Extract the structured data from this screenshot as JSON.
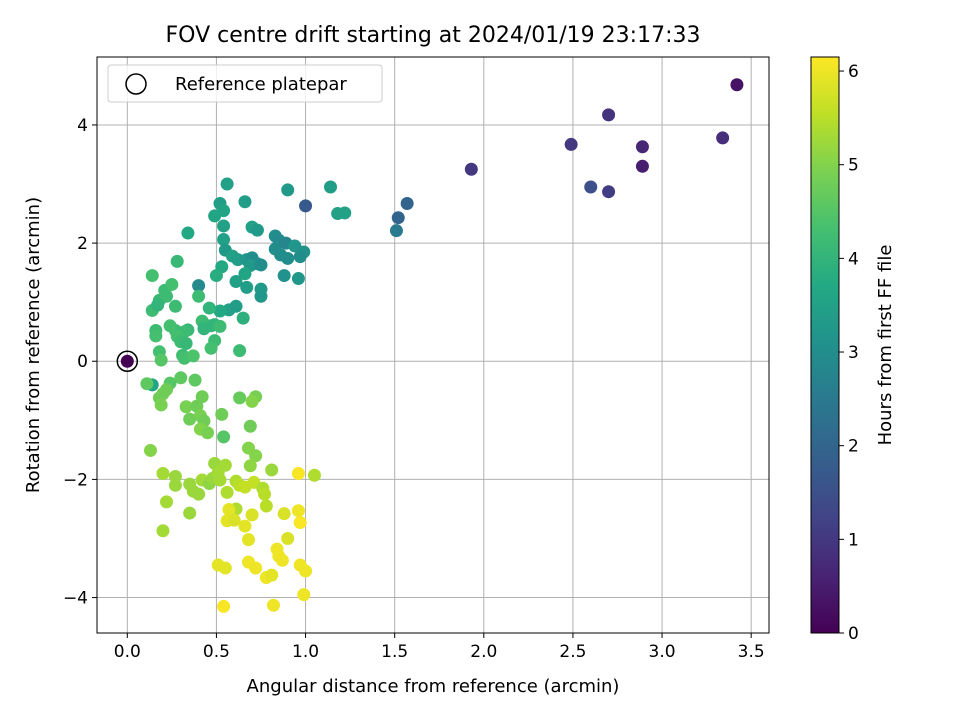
{
  "chart_data": {
    "type": "scatter",
    "title": "FOV centre drift starting at 2024/01/19 23:17:33",
    "xlabel": "Angular distance from reference (arcmin)",
    "ylabel": "Rotation from reference (arcmin)",
    "xlim": [
      -0.17,
      3.6
    ],
    "ylim": [
      -4.6,
      5.15
    ],
    "xticks": [
      0.0,
      0.5,
      1.0,
      1.5,
      2.0,
      2.5,
      3.0,
      3.5
    ],
    "xtick_labels": [
      "0.0",
      "0.5",
      "1.0",
      "1.5",
      "2.0",
      "2.5",
      "3.0",
      "3.5"
    ],
    "yticks": [
      -4,
      -2,
      0,
      2,
      4
    ],
    "ytick_labels": [
      "−4",
      "−2",
      "0",
      "2",
      "4"
    ],
    "grid": true,
    "legend": {
      "position": "top-left",
      "entries": [
        "Reference platepar"
      ]
    },
    "colorbar": {
      "label": "Hours from first FF file",
      "colormap": "viridis",
      "range": [
        0,
        6.15
      ],
      "ticks": [
        0,
        1,
        2,
        3,
        4,
        5,
        6
      ],
      "tick_labels": [
        "0",
        "1",
        "2",
        "3",
        "4",
        "5",
        "6"
      ]
    },
    "reference": {
      "x": 0.0,
      "y": 0.0,
      "c": 0.0
    },
    "series": [
      {
        "points": [
          [
            3.42,
            4.68,
            0.3
          ],
          [
            2.7,
            4.17,
            0.9
          ],
          [
            2.49,
            3.67,
            1.0
          ],
          [
            3.34,
            3.78,
            0.8
          ],
          [
            2.89,
            3.63,
            0.7
          ],
          [
            2.89,
            3.3,
            0.5
          ],
          [
            2.6,
            2.95,
            1.5
          ],
          [
            2.7,
            2.87,
            1.1
          ],
          [
            1.93,
            3.25,
            1.0
          ],
          [
            1.57,
            2.67,
            2.0
          ],
          [
            1.52,
            2.43,
            2.0
          ],
          [
            1.51,
            2.21,
            2.5
          ],
          [
            1.0,
            2.63,
            1.7
          ],
          [
            0.9,
            2.9,
            3.3
          ],
          [
            1.14,
            2.95,
            3.4
          ],
          [
            1.18,
            2.5,
            3.5
          ],
          [
            1.22,
            2.51,
            3.5
          ],
          [
            0.56,
            3.0,
            3.5
          ],
          [
            0.66,
            2.7,
            3.4
          ],
          [
            0.52,
            2.67,
            3.4
          ],
          [
            0.54,
            2.55,
            3.6
          ],
          [
            0.49,
            2.46,
            3.6
          ],
          [
            0.54,
            2.29,
            3.5
          ],
          [
            0.7,
            2.27,
            3.5
          ],
          [
            0.73,
            2.22,
            3.3
          ],
          [
            0.34,
            2.17,
            3.7
          ],
          [
            0.54,
            2.06,
            3.5
          ],
          [
            0.55,
            1.88,
            3.3
          ],
          [
            0.59,
            1.78,
            3.5
          ],
          [
            0.62,
            1.72,
            3.4
          ],
          [
            0.67,
            1.72,
            3.2
          ],
          [
            0.7,
            1.75,
            3.0
          ],
          [
            0.73,
            1.65,
            3.0
          ],
          [
            0.69,
            1.62,
            3.3
          ],
          [
            0.75,
            1.63,
            3.0
          ],
          [
            0.83,
            2.12,
            3.0
          ],
          [
            0.85,
            2.05,
            2.9
          ],
          [
            0.89,
            2.0,
            2.8
          ],
          [
            0.83,
            1.9,
            3.0
          ],
          [
            0.86,
            1.8,
            3.0
          ],
          [
            0.9,
            1.74,
            3.0
          ],
          [
            0.94,
            1.95,
            3.2
          ],
          [
            0.99,
            1.85,
            3.1
          ],
          [
            0.97,
            1.77,
            3.0
          ],
          [
            0.88,
            1.45,
            3.1
          ],
          [
            0.96,
            1.4,
            3.2
          ],
          [
            0.66,
            1.48,
            3.6
          ],
          [
            0.53,
            1.6,
            3.7
          ],
          [
            0.5,
            1.45,
            3.8
          ],
          [
            0.61,
            1.35,
            3.5
          ],
          [
            0.67,
            1.25,
            3.4
          ],
          [
            0.75,
            1.22,
            3.3
          ],
          [
            0.75,
            1.1,
            3.2
          ],
          [
            0.4,
            1.28,
            2.9
          ],
          [
            0.57,
            0.87,
            3.5
          ],
          [
            0.61,
            0.93,
            3.4
          ],
          [
            0.52,
            0.85,
            3.7
          ],
          [
            0.65,
            0.73,
            3.9
          ],
          [
            0.14,
            1.45,
            4.3
          ],
          [
            0.21,
            1.2,
            4.2
          ],
          [
            0.25,
            1.3,
            4.3
          ],
          [
            0.28,
            1.69,
            4.1
          ],
          [
            0.18,
            1.03,
            4.1
          ],
          [
            0.22,
            1.1,
            4.2
          ],
          [
            0.14,
            0.86,
            4.2
          ],
          [
            0.17,
            0.95,
            4.0
          ],
          [
            0.27,
            0.93,
            4.2
          ],
          [
            0.4,
            1.1,
            4.2
          ],
          [
            0.46,
            0.9,
            4.0
          ],
          [
            0.43,
            0.63,
            3.8
          ],
          [
            0.42,
            0.68,
            4.2
          ],
          [
            0.47,
            0.6,
            4.1
          ],
          [
            0.49,
            0.62,
            4.0
          ],
          [
            0.52,
            0.59,
            4.2
          ],
          [
            0.43,
            0.55,
            4.0
          ],
          [
            0.34,
            0.53,
            4.1
          ],
          [
            0.32,
            0.5,
            4.2
          ],
          [
            0.27,
            0.52,
            4.2
          ],
          [
            0.24,
            0.6,
            4.3
          ],
          [
            0.16,
            0.52,
            4.2
          ],
          [
            0.16,
            0.43,
            4.3
          ],
          [
            0.28,
            0.42,
            4.3
          ],
          [
            0.3,
            0.33,
            4.2
          ],
          [
            0.33,
            0.3,
            4.1
          ],
          [
            0.49,
            0.35,
            4.2
          ],
          [
            0.47,
            0.22,
            4.3
          ],
          [
            0.18,
            0.16,
            4.3
          ],
          [
            0.31,
            0.1,
            4.2
          ],
          [
            0.32,
            0.05,
            4.3
          ],
          [
            0.37,
            0.09,
            4.4
          ],
          [
            0.19,
            0.02,
            4.5
          ],
          [
            0.63,
            0.18,
            4.2
          ],
          [
            0.14,
            -0.4,
            3.6
          ],
          [
            0.11,
            -0.38,
            4.6
          ],
          [
            0.24,
            -0.37,
            4.5
          ],
          [
            0.3,
            -0.28,
            4.6
          ],
          [
            0.38,
            -0.32,
            4.6
          ],
          [
            0.22,
            -0.48,
            4.8
          ],
          [
            0.2,
            -0.55,
            4.8
          ],
          [
            0.18,
            -0.62,
            4.8
          ],
          [
            0.19,
            -0.74,
            4.9
          ],
          [
            0.33,
            -0.77,
            4.9
          ],
          [
            0.39,
            -0.76,
            4.8
          ],
          [
            0.42,
            -0.6,
            4.8
          ],
          [
            0.41,
            -0.92,
            4.9
          ],
          [
            0.35,
            -0.98,
            4.8
          ],
          [
            0.43,
            -1.01,
            4.8
          ],
          [
            0.41,
            -1.15,
            5.0
          ],
          [
            0.45,
            -1.21,
            4.9
          ],
          [
            0.53,
            -0.9,
            4.8
          ],
          [
            0.63,
            -0.62,
            4.7
          ],
          [
            0.72,
            -0.6,
            4.9
          ],
          [
            0.7,
            -0.68,
            5.0
          ],
          [
            0.69,
            -1.1,
            4.8
          ],
          [
            0.54,
            -1.28,
            4.5
          ],
          [
            0.13,
            -1.51,
            5.0
          ],
          [
            0.68,
            -1.47,
            5.0
          ],
          [
            0.72,
            -1.6,
            5.0
          ],
          [
            0.69,
            -1.77,
            5.1
          ],
          [
            0.2,
            -1.9,
            5.3
          ],
          [
            0.27,
            -1.95,
            5.2
          ],
          [
            0.27,
            -2.1,
            5.2
          ],
          [
            0.2,
            -2.87,
            5.3
          ],
          [
            0.22,
            -2.38,
            5.3
          ],
          [
            0.35,
            -2.08,
            5.2
          ],
          [
            0.37,
            -2.2,
            5.2
          ],
          [
            0.42,
            -2.01,
            5.3
          ],
          [
            0.4,
            -2.25,
            5.2
          ],
          [
            0.46,
            -2.07,
            5.1
          ],
          [
            0.48,
            -1.98,
            5.2
          ],
          [
            0.49,
            -1.73,
            5.2
          ],
          [
            0.55,
            -1.76,
            5.3
          ],
          [
            0.51,
            -1.89,
            5.3
          ],
          [
            0.52,
            -2.01,
            5.3
          ],
          [
            0.56,
            -2.22,
            5.4
          ],
          [
            0.61,
            -2.03,
            5.4
          ],
          [
            0.63,
            -2.1,
            5.5
          ],
          [
            0.66,
            -2.13,
            5.6
          ],
          [
            0.71,
            -2.05,
            5.6
          ],
          [
            0.61,
            -2.5,
            5.4
          ],
          [
            0.76,
            -2.15,
            5.4
          ],
          [
            0.77,
            -2.25,
            5.5
          ],
          [
            0.78,
            -2.45,
            5.5
          ],
          [
            0.81,
            -1.84,
            5.2
          ],
          [
            0.35,
            -2.57,
            5.2
          ],
          [
            0.57,
            -2.51,
            5.9
          ],
          [
            0.56,
            -2.7,
            5.9
          ],
          [
            0.6,
            -2.69,
            5.8
          ],
          [
            0.66,
            -2.79,
            5.9
          ],
          [
            0.7,
            -2.6,
            5.8
          ],
          [
            0.68,
            -3.02,
            5.9
          ],
          [
            0.88,
            -2.58,
            5.8
          ],
          [
            0.9,
            -3.0,
            5.8
          ],
          [
            0.96,
            -2.53,
            6.0
          ],
          [
            0.97,
            -2.73,
            6.1
          ],
          [
            0.96,
            -1.9,
            6.1
          ],
          [
            1.05,
            -1.93,
            5.4
          ],
          [
            0.51,
            -3.45,
            5.9
          ],
          [
            0.55,
            -3.5,
            5.9
          ],
          [
            0.68,
            -3.4,
            6.0
          ],
          [
            0.72,
            -3.5,
            6.0
          ],
          [
            0.78,
            -3.66,
            6.0
          ],
          [
            0.81,
            -3.62,
            5.9
          ],
          [
            0.84,
            -3.18,
            6.0
          ],
          [
            0.85,
            -3.3,
            6.0
          ],
          [
            0.87,
            -3.37,
            6.0
          ],
          [
            0.97,
            -3.45,
            6.0
          ],
          [
            1.0,
            -3.55,
            6.0
          ],
          [
            0.99,
            -3.95,
            6.0
          ],
          [
            0.82,
            -4.13,
            6.0
          ],
          [
            0.54,
            -4.15,
            6.1
          ]
        ]
      }
    ]
  }
}
